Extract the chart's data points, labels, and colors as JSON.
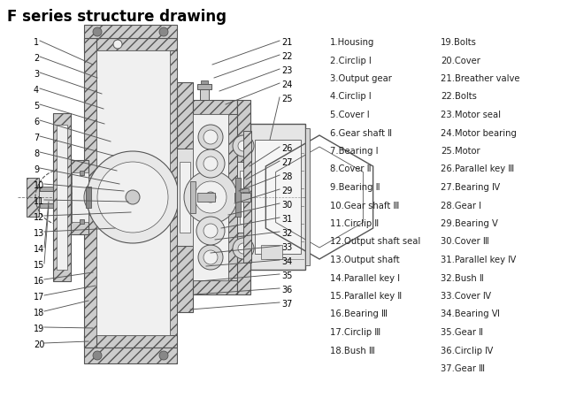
{
  "title": "F series structure drawing",
  "title_fontsize": 12,
  "title_fontweight": "bold",
  "bg_color": "#ffffff",
  "parts_col1": [
    "1.Housing",
    "2.Circlip Ⅰ",
    "3.Output gear",
    "4.Circlip Ⅰ",
    "5.Cover Ⅰ",
    "6.Gear shaft Ⅱ",
    "7.Bearing Ⅰ",
    "8.Cover Ⅱ",
    "9.Bearing Ⅱ",
    "10.Gear shaft Ⅲ",
    "11.Circlip Ⅱ",
    "12.Output shaft seal",
    "13.Output shaft",
    "14.Parallel key Ⅰ",
    "15.Parallel key Ⅱ",
    "16.Bearing Ⅲ",
    "17.Circlip Ⅲ",
    "18.Bush Ⅲ"
  ],
  "parts_col2": [
    "19.Bolts",
    "20.Cover",
    "21.Breather valve",
    "22.Bolts",
    "23.Motor seal",
    "24.Motor bearing",
    "25.Motor",
    "26.Parallel key Ⅲ",
    "27.Bearing Ⅳ",
    "28.Gear Ⅰ",
    "29.Bearing Ⅴ",
    "30.Cover Ⅲ",
    "31.Parallel key Ⅳ",
    "32.Bush Ⅱ",
    "33.Cover Ⅳ",
    "34.Bearing Ⅵ",
    "35.Gear Ⅱ",
    "36.Circlip Ⅳ",
    "37.Gear Ⅲ"
  ],
  "lc": "#555555",
  "hatch_fc": "#cccccc",
  "light_fc": "#f0f0f0",
  "dark_fc": "#999999"
}
